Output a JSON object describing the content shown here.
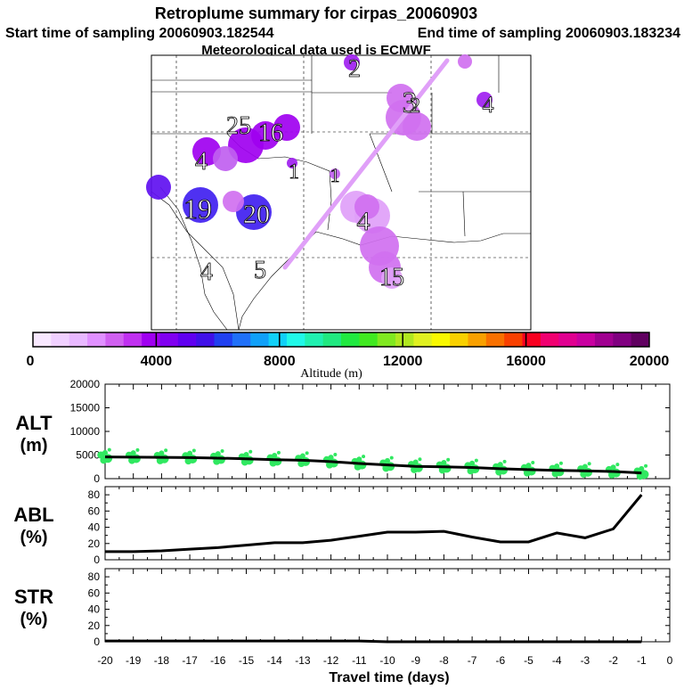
{
  "header": {
    "title": "Retroplume summary for cirpas_20060903",
    "start_label": "Start time of sampling 20060903.182544",
    "end_label": "End time of sampling 20060903.183234",
    "met_label": "Meteorological data used is ECMWF"
  },
  "map": {
    "day_labels": [
      "2",
      "3",
      "4",
      "25",
      "16",
      "1",
      "4",
      "19",
      "20",
      "4",
      "4",
      "5",
      "1",
      "15",
      "2"
    ],
    "plume_color": "#d070f0",
    "track_color": "#e0a0f8"
  },
  "colorbar": {
    "ticks": [
      "0",
      "4000",
      "8000",
      "12000",
      "16000",
      "20000"
    ],
    "label": "Altitude (m)",
    "colors": [
      "#f8e8ff",
      "#f0d0ff",
      "#e8b8ff",
      "#e090ff",
      "#d060f0",
      "#c030f0",
      "#a000f0",
      "#8000f0",
      "#6000f0",
      "#4010e8",
      "#2040f0",
      "#2070f8",
      "#10a0f8",
      "#10d0f8",
      "#20f8e8",
      "#20f0b0",
      "#20e880",
      "#20e840",
      "#40e820",
      "#80e820",
      "#b0e820",
      "#e0f020",
      "#f8f800",
      "#f8d000",
      "#f8a000",
      "#f87000",
      "#f84000",
      "#f80020",
      "#f00070",
      "#e00090",
      "#c800a0",
      "#a00090",
      "#800080",
      "#600060"
    ]
  },
  "chart_data": [
    {
      "type": "line",
      "name": "ALT",
      "ylabel_line1": "ALT",
      "ylabel_line2": "(m)",
      "ylim": [
        0,
        20000
      ],
      "yticks": [
        "20000",
        "15000",
        "10000",
        "5000",
        "0"
      ],
      "x": [
        -20,
        -19,
        -18,
        -17,
        -16,
        -15,
        -14,
        -13,
        -12,
        -11,
        -10,
        -9,
        -8,
        -7,
        -6,
        -5,
        -4,
        -3,
        -2,
        -1
      ],
      "values": [
        4600,
        4550,
        4500,
        4450,
        4350,
        4200,
        4000,
        3900,
        3600,
        3200,
        2900,
        2600,
        2500,
        2350,
        2100,
        1900,
        1750,
        1650,
        1500,
        1200
      ],
      "scatter_color": "#30e860"
    },
    {
      "type": "line",
      "name": "ABL",
      "ylabel_line1": "ABL",
      "ylabel_line2": "(%)",
      "ylim": [
        0,
        100
      ],
      "yticks": [
        "80",
        "60",
        "40",
        "20",
        "0"
      ],
      "x": [
        -20,
        -19,
        -18,
        -17,
        -16,
        -15,
        -14,
        -13,
        -12,
        -11,
        -10,
        -9,
        -8,
        -7,
        -6,
        -5,
        -4,
        -3,
        -2,
        -1
      ],
      "values": [
        10,
        10,
        11,
        13,
        15,
        18,
        21,
        21,
        24,
        29,
        34,
        34,
        35,
        28,
        22,
        22,
        33,
        27,
        38,
        80
      ]
    },
    {
      "type": "line",
      "name": "STR",
      "ylabel_line1": "STR",
      "ylabel_line2": "(%)",
      "ylim": [
        0,
        100
      ],
      "yticks": [
        "80",
        "60",
        "40",
        "20",
        "0"
      ],
      "x": [
        -20,
        -19,
        -18,
        -17,
        -16,
        -15,
        -14,
        -13,
        -12,
        -11,
        -10,
        -9,
        -8,
        -7,
        -6,
        -5,
        -4,
        -3,
        -2,
        -1
      ],
      "values": [
        1,
        1,
        1,
        1,
        1,
        1,
        1,
        1,
        1,
        1,
        0,
        0,
        0,
        0,
        0,
        0,
        0,
        0,
        0,
        0
      ]
    }
  ],
  "xaxis": {
    "ticks": [
      "-20",
      "-19",
      "-18",
      "-17",
      "-16",
      "-15",
      "-14",
      "-13",
      "-12",
      "-11",
      "-10",
      "-9",
      "-8",
      "-7",
      "-6",
      "-5",
      "-4",
      "-3",
      "-2",
      "-1",
      "0"
    ],
    "label": "Travel time (days)"
  }
}
